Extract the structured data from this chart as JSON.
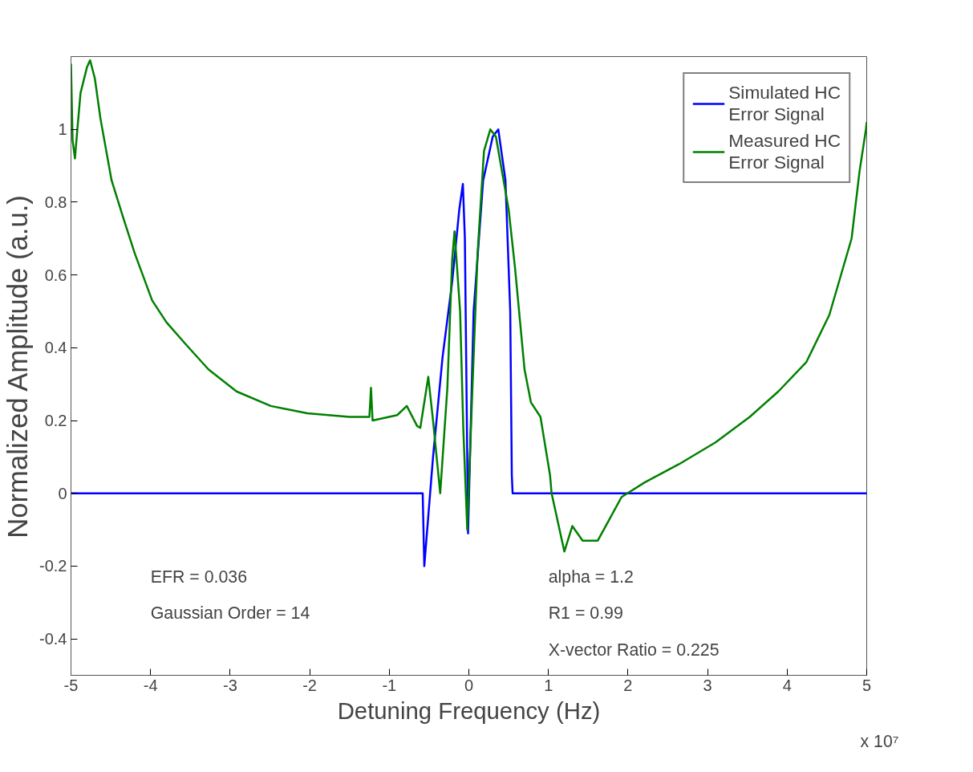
{
  "chart_data": {
    "type": "line",
    "xlabel": "Detuning Frequency (Hz)",
    "ylabel": "Normalized Amplitude (a.u.)",
    "xlim": [
      -5,
      5
    ],
    "xticks": [
      -5,
      -4,
      -3,
      -2,
      -1,
      0,
      1,
      2,
      3,
      4,
      5
    ],
    "ylim": [
      -0.5,
      1.2
    ],
    "yticks": [
      -0.4,
      -0.2,
      0,
      0.2,
      0.4,
      0.6,
      0.8,
      1
    ],
    "grid": false,
    "legend": "top right",
    "line_style": "solid",
    "marker": "none",
    "annotations": [
      "EFR = 0.036",
      "Gaussian Order = 14",
      "alpha = 1.2",
      "R1 = 0.99",
      "X-vector Ratio = 0.225",
      "x 10⁷"
    ],
    "series": [
      {
        "name": "Simulated HC Error Signal",
        "color": "#0000ff",
        "x": [
          -5,
          -0.58,
          -0.56,
          -0.45,
          -0.33,
          -0.21,
          -0.12,
          -0.075,
          -0.05,
          -0.03,
          -0.01,
          0.02,
          0.06,
          0.18,
          0.3,
          0.37,
          0.46,
          0.52,
          0.54,
          0.55,
          5
        ],
        "values": [
          0,
          0,
          -0.2,
          0.1,
          0.375,
          0.58,
          0.78,
          0.85,
          0.7,
          0.3,
          -0.11,
          0.15,
          0.5,
          0.86,
          0.98,
          1.0,
          0.86,
          0.5,
          0.05,
          0,
          0
        ]
      },
      {
        "name": "Measured HC Error Signal",
        "color": "#008000",
        "x": [
          -5,
          -4.98,
          -4.95,
          -4.92,
          -4.88,
          -4.8,
          -4.76,
          -4.7,
          -4.63,
          -4.49,
          -4.34,
          -4.2,
          -3.98,
          -3.8,
          -3.56,
          -3.27,
          -2.92,
          -2.49,
          -2.03,
          -1.5,
          -1.25,
          -1.23,
          -1.21,
          -0.9,
          -0.78,
          -0.65,
          -0.61,
          -0.51,
          -0.45,
          -0.36,
          -0.27,
          -0.21,
          -0.18,
          -0.11,
          -0.07,
          -0.02,
          0.04,
          0.11,
          0.19,
          0.27,
          0.34,
          0.5,
          0.58,
          0.7,
          0.78,
          0.9,
          1.02,
          1.04,
          1.2,
          1.3,
          1.43,
          1.62,
          1.92,
          2.21,
          2.64,
          3.1,
          3.53,
          3.89,
          4.24,
          4.53,
          4.81,
          4.91,
          4.99,
          5
        ],
        "values": [
          1.18,
          0.97,
          0.92,
          1.0,
          1.1,
          1.17,
          1.19,
          1.14,
          1.03,
          0.86,
          0.755,
          0.66,
          0.53,
          0.47,
          0.41,
          0.34,
          0.28,
          0.24,
          0.22,
          0.21,
          0.21,
          0.29,
          0.2,
          0.215,
          0.24,
          0.185,
          0.18,
          0.32,
          0.2,
          0.0,
          0.29,
          0.64,
          0.72,
          0.5,
          0.18,
          -0.1,
          0.26,
          0.66,
          0.94,
          1.0,
          0.98,
          0.78,
          0.62,
          0.34,
          0.25,
          0.21,
          0.05,
          0.0,
          -0.16,
          -0.09,
          -0.13,
          -0.13,
          -0.01,
          0.03,
          0.08,
          0.14,
          0.21,
          0.28,
          0.36,
          0.49,
          0.7,
          0.885,
          1.0,
          1.02
        ]
      }
    ]
  }
}
